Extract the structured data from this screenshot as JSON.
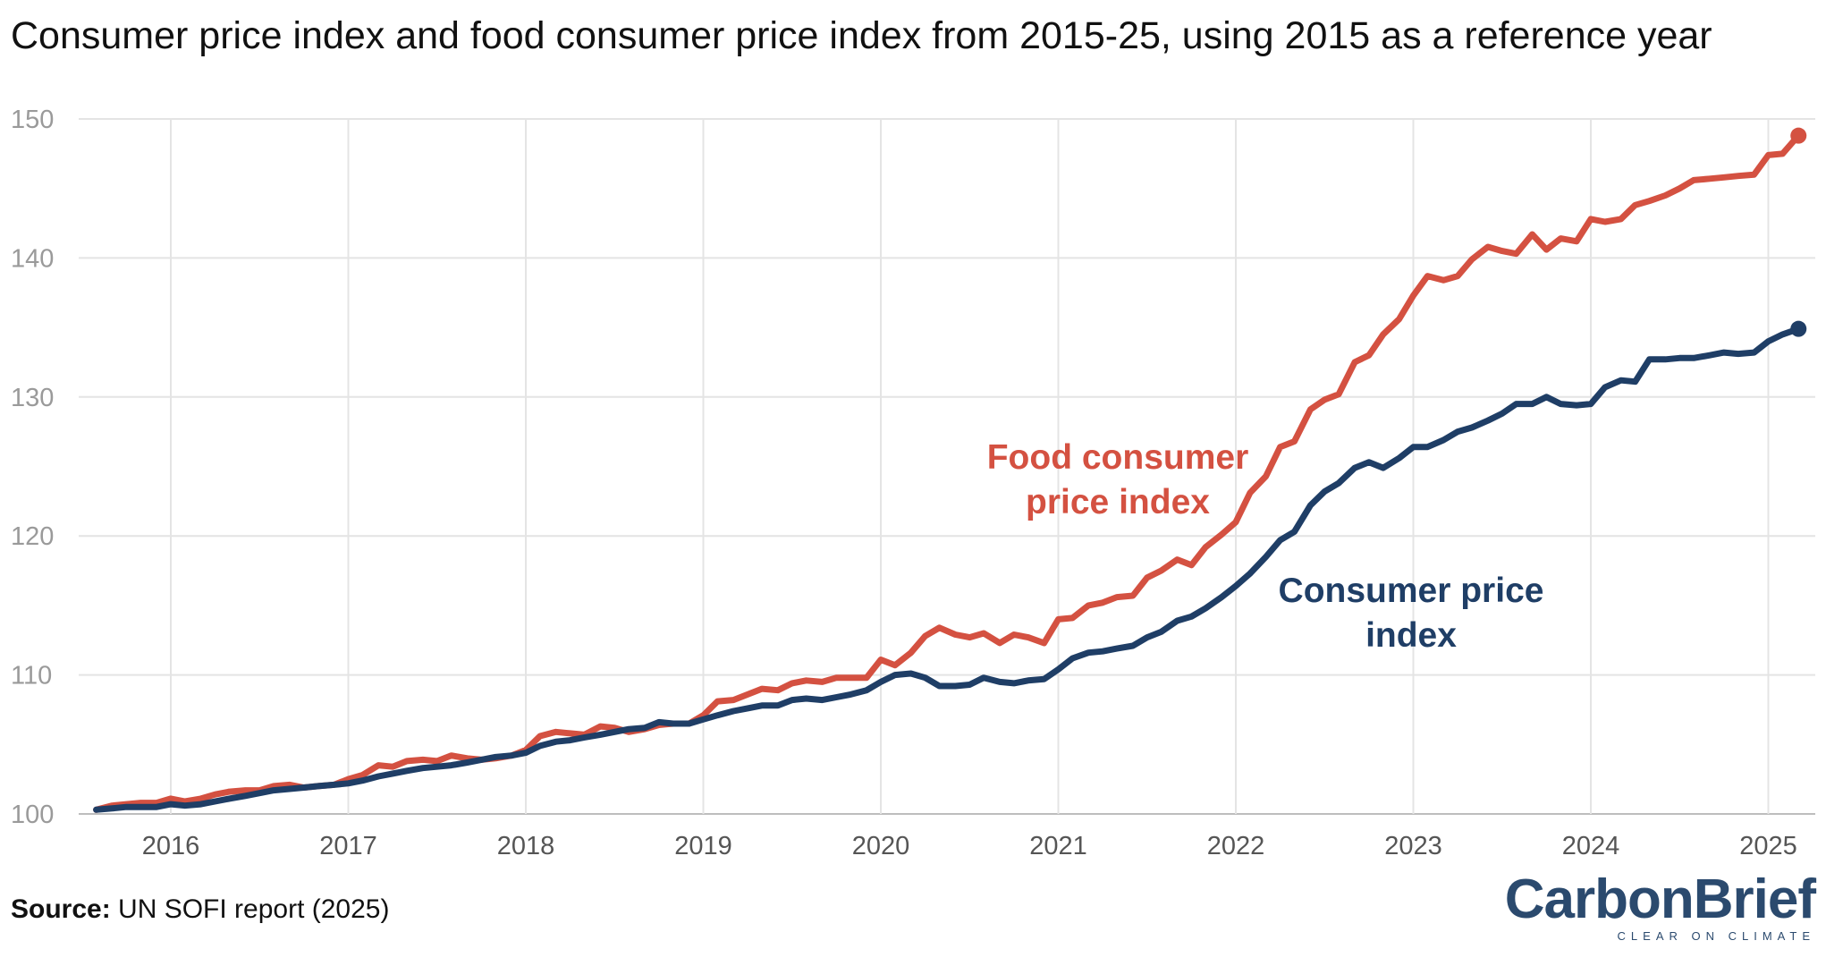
{
  "title": "Consumer price index and food consumer price index from 2015-25, using 2015 as a reference year",
  "source": {
    "label": "Source:",
    "text": " UN SOFI report (2025)"
  },
  "logo": {
    "word": "CarbonBrief",
    "tagline": "CLEAR ON CLIMATE"
  },
  "colors": {
    "food": "#d45141",
    "cpi": "#1f3e66",
    "grid": "#e4e4e4"
  },
  "chart_data": {
    "type": "line",
    "title": "Consumer price index and food consumer price index from 2015-25, using 2015 as a reference year",
    "xlabel": "",
    "ylabel": "",
    "xlim": [
      2015.55,
      2025.3
    ],
    "ylim": [
      100,
      150
    ],
    "y_ticks": [
      100,
      110,
      120,
      130,
      140,
      150
    ],
    "x_ticks": [
      "2016",
      "2017",
      "2018",
      "2019",
      "2020",
      "2021",
      "2022",
      "2023",
      "2024",
      "2025"
    ],
    "grid": true,
    "legend": "inline labels",
    "series": [
      {
        "name": "Food consumer price index",
        "label_lines": [
          "Food consumer",
          "price index"
        ],
        "color": "#d45141",
        "points": [
          [
            2015.58,
            100.3
          ],
          [
            2015.67,
            100.6
          ],
          [
            2015.75,
            100.7
          ],
          [
            2015.83,
            100.8
          ],
          [
            2015.92,
            100.8
          ],
          [
            2016.0,
            101.1
          ],
          [
            2016.08,
            100.9
          ],
          [
            2016.17,
            101.1
          ],
          [
            2016.25,
            101.4
          ],
          [
            2016.33,
            101.6
          ],
          [
            2016.42,
            101.7
          ],
          [
            2016.5,
            101.7
          ],
          [
            2016.58,
            102.0
          ],
          [
            2016.67,
            102.1
          ],
          [
            2016.75,
            101.9
          ],
          [
            2016.83,
            102.0
          ],
          [
            2016.92,
            102.1
          ],
          [
            2017.0,
            102.5
          ],
          [
            2017.08,
            102.8
          ],
          [
            2017.17,
            103.5
          ],
          [
            2017.25,
            103.4
          ],
          [
            2017.33,
            103.8
          ],
          [
            2017.42,
            103.9
          ],
          [
            2017.5,
            103.8
          ],
          [
            2017.58,
            104.2
          ],
          [
            2017.67,
            104.0
          ],
          [
            2017.75,
            103.9
          ],
          [
            2017.83,
            104.0
          ],
          [
            2017.92,
            104.2
          ],
          [
            2018.0,
            104.6
          ],
          [
            2018.08,
            105.6
          ],
          [
            2018.17,
            105.9
          ],
          [
            2018.25,
            105.8
          ],
          [
            2018.33,
            105.7
          ],
          [
            2018.42,
            106.3
          ],
          [
            2018.5,
            106.2
          ],
          [
            2018.58,
            105.9
          ],
          [
            2018.67,
            106.1
          ],
          [
            2018.75,
            106.4
          ],
          [
            2018.83,
            106.5
          ],
          [
            2018.92,
            106.5
          ],
          [
            2019.0,
            107.1
          ],
          [
            2019.08,
            108.1
          ],
          [
            2019.17,
            108.2
          ],
          [
            2019.25,
            108.6
          ],
          [
            2019.33,
            109.0
          ],
          [
            2019.42,
            108.9
          ],
          [
            2019.5,
            109.4
          ],
          [
            2019.58,
            109.6
          ],
          [
            2019.67,
            109.5
          ],
          [
            2019.75,
            109.8
          ],
          [
            2019.83,
            109.8
          ],
          [
            2019.92,
            109.8
          ],
          [
            2020.0,
            111.1
          ],
          [
            2020.08,
            110.7
          ],
          [
            2020.17,
            111.6
          ],
          [
            2020.25,
            112.8
          ],
          [
            2020.33,
            113.4
          ],
          [
            2020.42,
            112.9
          ],
          [
            2020.5,
            112.7
          ],
          [
            2020.58,
            113.0
          ],
          [
            2020.67,
            112.3
          ],
          [
            2020.75,
            112.9
          ],
          [
            2020.83,
            112.7
          ],
          [
            2020.92,
            112.3
          ],
          [
            2021.0,
            114.0
          ],
          [
            2021.08,
            114.1
          ],
          [
            2021.17,
            115.0
          ],
          [
            2021.25,
            115.2
          ],
          [
            2021.33,
            115.6
          ],
          [
            2021.42,
            115.7
          ],
          [
            2021.5,
            117.0
          ],
          [
            2021.58,
            117.5
          ],
          [
            2021.67,
            118.3
          ],
          [
            2021.75,
            117.9
          ],
          [
            2021.83,
            119.2
          ],
          [
            2021.92,
            120.1
          ],
          [
            2022.0,
            121.0
          ],
          [
            2022.08,
            123.1
          ],
          [
            2022.17,
            124.3
          ],
          [
            2022.25,
            126.4
          ],
          [
            2022.33,
            126.8
          ],
          [
            2022.42,
            129.1
          ],
          [
            2022.5,
            129.8
          ],
          [
            2022.58,
            130.2
          ],
          [
            2022.67,
            132.5
          ],
          [
            2022.75,
            133.0
          ],
          [
            2022.83,
            134.5
          ],
          [
            2022.92,
            135.6
          ],
          [
            2023.0,
            137.3
          ],
          [
            2023.08,
            138.7
          ],
          [
            2023.17,
            138.4
          ],
          [
            2023.25,
            138.7
          ],
          [
            2023.33,
            139.9
          ],
          [
            2023.42,
            140.8
          ],
          [
            2023.5,
            140.5
          ],
          [
            2023.58,
            140.3
          ],
          [
            2023.67,
            141.7
          ],
          [
            2023.75,
            140.6
          ],
          [
            2023.83,
            141.4
          ],
          [
            2023.92,
            141.2
          ],
          [
            2024.0,
            142.8
          ],
          [
            2024.08,
            142.6
          ],
          [
            2024.17,
            142.8
          ],
          [
            2024.25,
            143.8
          ],
          [
            2024.33,
            144.1
          ],
          [
            2024.42,
            144.5
          ],
          [
            2024.5,
            145.0
          ],
          [
            2024.58,
            145.6
          ],
          [
            2024.67,
            145.7
          ],
          [
            2024.75,
            145.8
          ],
          [
            2024.83,
            145.9
          ],
          [
            2024.92,
            146.0
          ],
          [
            2025.0,
            147.4
          ],
          [
            2025.08,
            147.5
          ],
          [
            2025.17,
            148.8
          ]
        ]
      },
      {
        "name": "Consumer price index",
        "label_lines": [
          "Consumer price",
          "index"
        ],
        "color": "#1f3e66",
        "points": [
          [
            2015.58,
            100.3
          ],
          [
            2015.67,
            100.4
          ],
          [
            2015.75,
            100.5
          ],
          [
            2015.83,
            100.5
          ],
          [
            2015.92,
            100.5
          ],
          [
            2016.0,
            100.7
          ],
          [
            2016.08,
            100.6
          ],
          [
            2016.17,
            100.7
          ],
          [
            2016.25,
            100.9
          ],
          [
            2016.33,
            101.1
          ],
          [
            2016.42,
            101.3
          ],
          [
            2016.5,
            101.5
          ],
          [
            2016.58,
            101.7
          ],
          [
            2016.67,
            101.8
          ],
          [
            2016.75,
            101.9
          ],
          [
            2016.83,
            102.0
          ],
          [
            2016.92,
            102.1
          ],
          [
            2017.0,
            102.2
          ],
          [
            2017.08,
            102.4
          ],
          [
            2017.17,
            102.7
          ],
          [
            2017.25,
            102.9
          ],
          [
            2017.33,
            103.1
          ],
          [
            2017.42,
            103.3
          ],
          [
            2017.5,
            103.4
          ],
          [
            2017.58,
            103.5
          ],
          [
            2017.67,
            103.7
          ],
          [
            2017.75,
            103.9
          ],
          [
            2017.83,
            104.1
          ],
          [
            2017.92,
            104.2
          ],
          [
            2018.0,
            104.4
          ],
          [
            2018.08,
            104.9
          ],
          [
            2018.17,
            105.2
          ],
          [
            2018.25,
            105.3
          ],
          [
            2018.33,
            105.5
          ],
          [
            2018.42,
            105.7
          ],
          [
            2018.5,
            105.9
          ],
          [
            2018.58,
            106.1
          ],
          [
            2018.67,
            106.2
          ],
          [
            2018.75,
            106.6
          ],
          [
            2018.83,
            106.5
          ],
          [
            2018.92,
            106.5
          ],
          [
            2019.0,
            106.8
          ],
          [
            2019.08,
            107.1
          ],
          [
            2019.17,
            107.4
          ],
          [
            2019.25,
            107.6
          ],
          [
            2019.33,
            107.8
          ],
          [
            2019.42,
            107.8
          ],
          [
            2019.5,
            108.2
          ],
          [
            2019.58,
            108.3
          ],
          [
            2019.67,
            108.2
          ],
          [
            2019.75,
            108.4
          ],
          [
            2019.83,
            108.6
          ],
          [
            2019.92,
            108.9
          ],
          [
            2020.0,
            109.5
          ],
          [
            2020.08,
            110.0
          ],
          [
            2020.17,
            110.1
          ],
          [
            2020.25,
            109.8
          ],
          [
            2020.33,
            109.2
          ],
          [
            2020.42,
            109.2
          ],
          [
            2020.5,
            109.3
          ],
          [
            2020.58,
            109.8
          ],
          [
            2020.67,
            109.5
          ],
          [
            2020.75,
            109.4
          ],
          [
            2020.83,
            109.6
          ],
          [
            2020.92,
            109.7
          ],
          [
            2021.0,
            110.4
          ],
          [
            2021.08,
            111.2
          ],
          [
            2021.17,
            111.6
          ],
          [
            2021.25,
            111.7
          ],
          [
            2021.33,
            111.9
          ],
          [
            2021.42,
            112.1
          ],
          [
            2021.5,
            112.7
          ],
          [
            2021.58,
            113.1
          ],
          [
            2021.67,
            113.9
          ],
          [
            2021.75,
            114.2
          ],
          [
            2021.83,
            114.8
          ],
          [
            2021.92,
            115.6
          ],
          [
            2022.0,
            116.4
          ],
          [
            2022.08,
            117.3
          ],
          [
            2022.17,
            118.5
          ],
          [
            2022.25,
            119.7
          ],
          [
            2022.33,
            120.3
          ],
          [
            2022.42,
            122.2
          ],
          [
            2022.5,
            123.2
          ],
          [
            2022.58,
            123.8
          ],
          [
            2022.67,
            124.9
          ],
          [
            2022.75,
            125.3
          ],
          [
            2022.83,
            124.9
          ],
          [
            2022.92,
            125.6
          ],
          [
            2023.0,
            126.4
          ],
          [
            2023.08,
            126.4
          ],
          [
            2023.17,
            126.9
          ],
          [
            2023.25,
            127.5
          ],
          [
            2023.33,
            127.8
          ],
          [
            2023.42,
            128.3
          ],
          [
            2023.5,
            128.8
          ],
          [
            2023.58,
            129.5
          ],
          [
            2023.67,
            129.5
          ],
          [
            2023.75,
            130.0
          ],
          [
            2023.83,
            129.5
          ],
          [
            2023.92,
            129.4
          ],
          [
            2024.0,
            129.5
          ],
          [
            2024.08,
            130.7
          ],
          [
            2024.17,
            131.2
          ],
          [
            2024.25,
            131.1
          ],
          [
            2024.33,
            132.7
          ],
          [
            2024.42,
            132.7
          ],
          [
            2024.5,
            132.8
          ],
          [
            2024.58,
            132.8
          ],
          [
            2024.67,
            133.0
          ],
          [
            2024.75,
            133.2
          ],
          [
            2024.83,
            133.1
          ],
          [
            2024.92,
            133.2
          ],
          [
            2025.0,
            134.0
          ],
          [
            2025.08,
            134.5
          ],
          [
            2025.17,
            134.9
          ]
        ]
      }
    ]
  }
}
